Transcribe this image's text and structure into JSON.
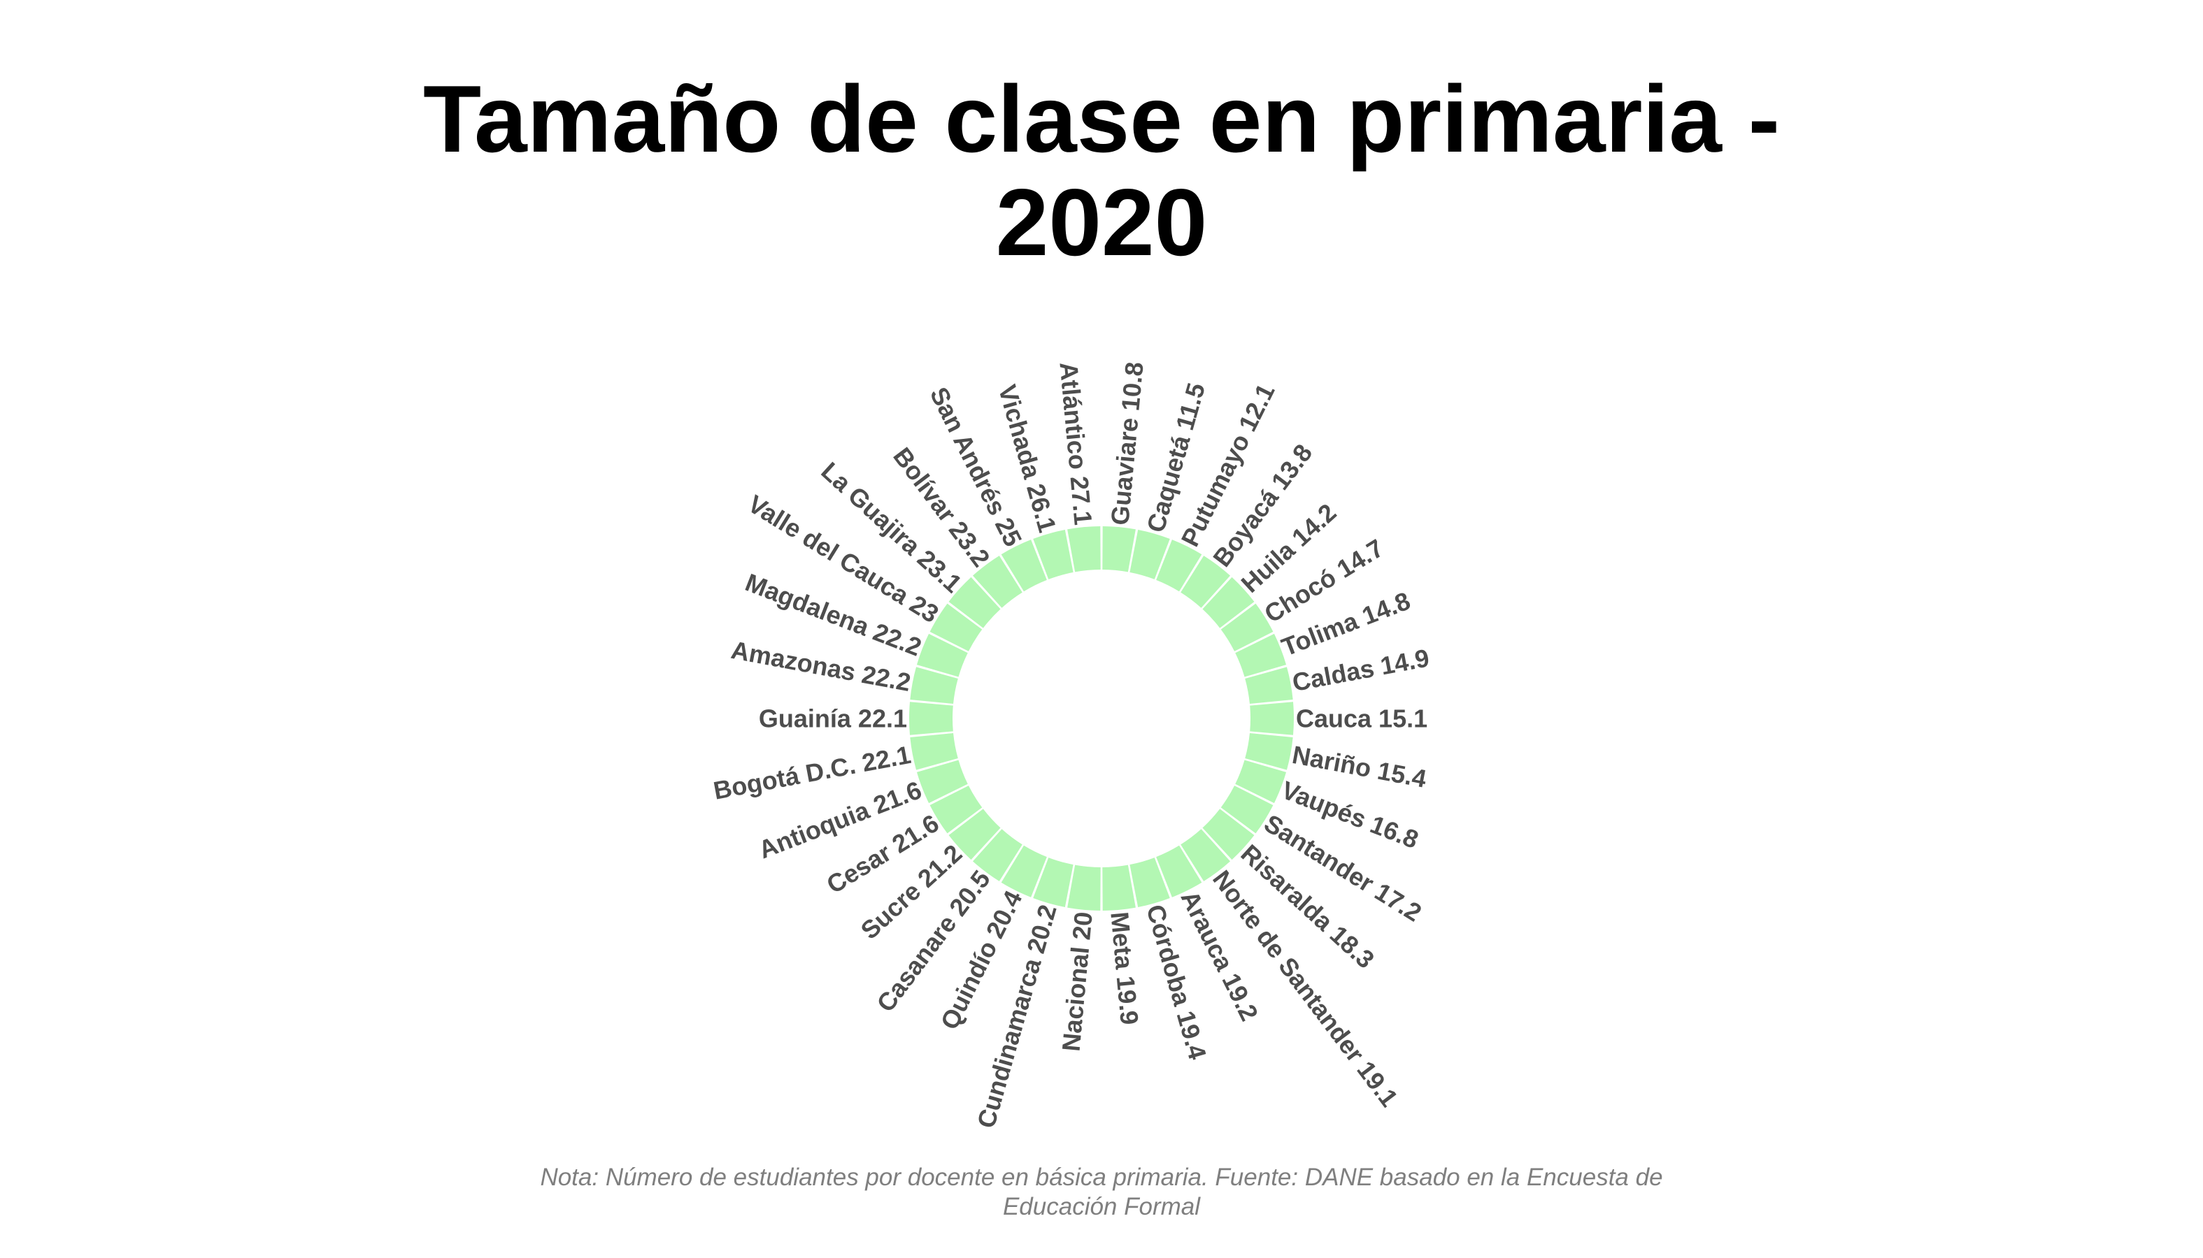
{
  "chart_data": {
    "type": "bar",
    "layout": "circular",
    "title_lines": [
      "Tamaño de clase en primaria -",
      "2020"
    ],
    "categories": [
      "Guaviare",
      "Caquetá",
      "Putumayo",
      "Boyacá",
      "Huila",
      "Chocó",
      "Tolima",
      "Caldas",
      "Cauca",
      "Nariño",
      "Vaupés",
      "Santander",
      "Risaralda",
      "Norte de Santander",
      "Arauca",
      "Córdoba",
      "Meta",
      "Nacional",
      "Cundinamarca",
      "Quindío",
      "Casanare",
      "Sucre",
      "Cesar",
      "Antioquia",
      "Bogotá D.C.",
      "Guainía",
      "Amazonas",
      "Magdalena",
      "Valle del Cauca",
      "La Guajira",
      "Bolívar",
      "San Andrés",
      "Vichada",
      "Atlántico"
    ],
    "values": [
      10.8,
      11.5,
      12.1,
      13.8,
      14.2,
      14.7,
      14.8,
      14.9,
      15.1,
      15.4,
      16.8,
      17.2,
      18.3,
      19.1,
      19.2,
      19.4,
      19.9,
      20,
      20.2,
      20.4,
      20.5,
      21.2,
      21.6,
      21.6,
      22.1,
      22.1,
      22.2,
      22.2,
      23,
      23.1,
      23.2,
      25,
      26.1,
      27.1
    ],
    "labels": [
      "Guaviare 10.8",
      "Caquetá 11.5",
      "Putumayo 12.1",
      "Boyacá 13.8",
      "Huila 14.2",
      "Chocó 14.7",
      "Tolima 14.8",
      "Caldas 14.9",
      "Cauca 15.1",
      "Nariño 15.4",
      "Vaupés 16.8",
      "Santander 17.2",
      "Risaralda 18.3",
      "Norte de Santander 19.1",
      "Arauca 19.2",
      "Córdoba 19.4",
      "Meta 19.9",
      "Nacional 20",
      "Cundinamarca 20.2",
      "Quindío 20.4",
      "Casanare 20.5",
      "Sucre 21.2",
      "Cesar 21.6",
      "Antioquia 21.6",
      "Bogotá D.C. 22.1",
      "Guainía 22.1",
      "Amazonas 22.2",
      "Magdalena 22.2",
      "Valle del Cauca 23",
      "La Guajira 23.1",
      "Bolívar 23.2",
      "San Andrés 25",
      "Vichada 26.1",
      "Atlántico 27.1"
    ],
    "bar_color": "#b3f7b3",
    "label_color": "#4d4d4d",
    "direction": "clockwise from top",
    "grid": false,
    "legend": "none",
    "xlabel": "",
    "ylabel": "",
    "note_lines": [
      "Nota: Número de estudiantes por docente en básica primaria. Fuente: DANE basado en la Encuesta de",
      "Educación Formal"
    ]
  }
}
